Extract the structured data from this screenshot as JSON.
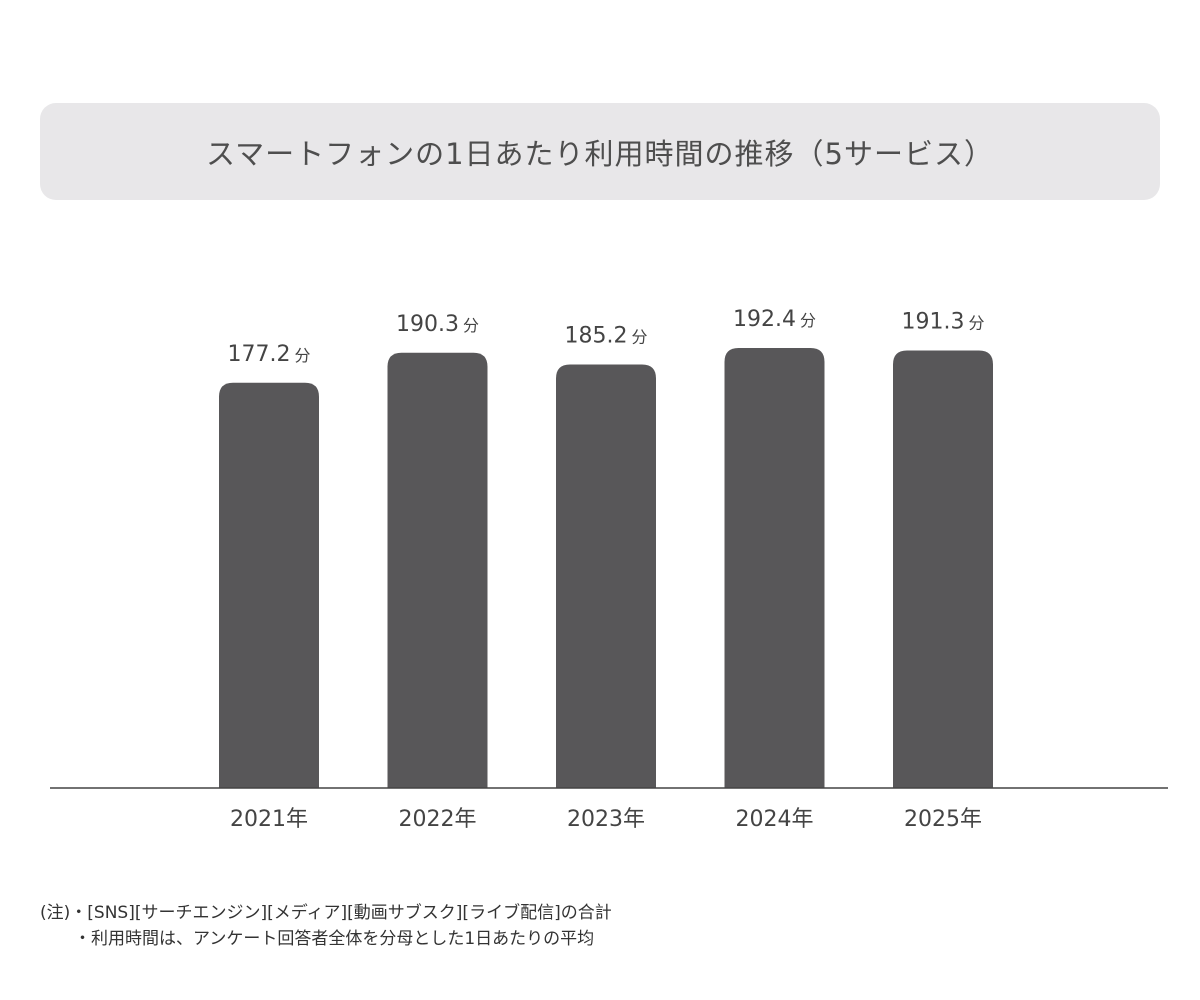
{
  "title": "スマートフォンの1日あたり利用時間の推移（5サービス）",
  "chart_data": {
    "type": "bar",
    "title": "スマートフォンの1日あたり利用時間の推移（5サービス）",
    "categories": [
      "2021年",
      "2022年",
      "2023年",
      "2024年",
      "2025年"
    ],
    "values": [
      177.2,
      190.3,
      185.2,
      192.4,
      191.3
    ],
    "unit": "分",
    "value_labels": [
      "177.2",
      "190.3",
      "185.2",
      "192.4",
      "191.3"
    ],
    "xlabel": "",
    "ylabel": "",
    "ylim": [
      0,
      192.4
    ],
    "grid": false,
    "legend": "none",
    "colors": {
      "bar": "#585759",
      "axis": "#444444",
      "label": "#444444"
    }
  },
  "notes": {
    "prefix": "(注)",
    "line1": "・[SNS][サーチエンジン][メディア][動画サブスク][ライブ配信]の合計",
    "line2": "・利用時間は、アンケート回答者全体を分母とした1日あたりの平均"
  }
}
